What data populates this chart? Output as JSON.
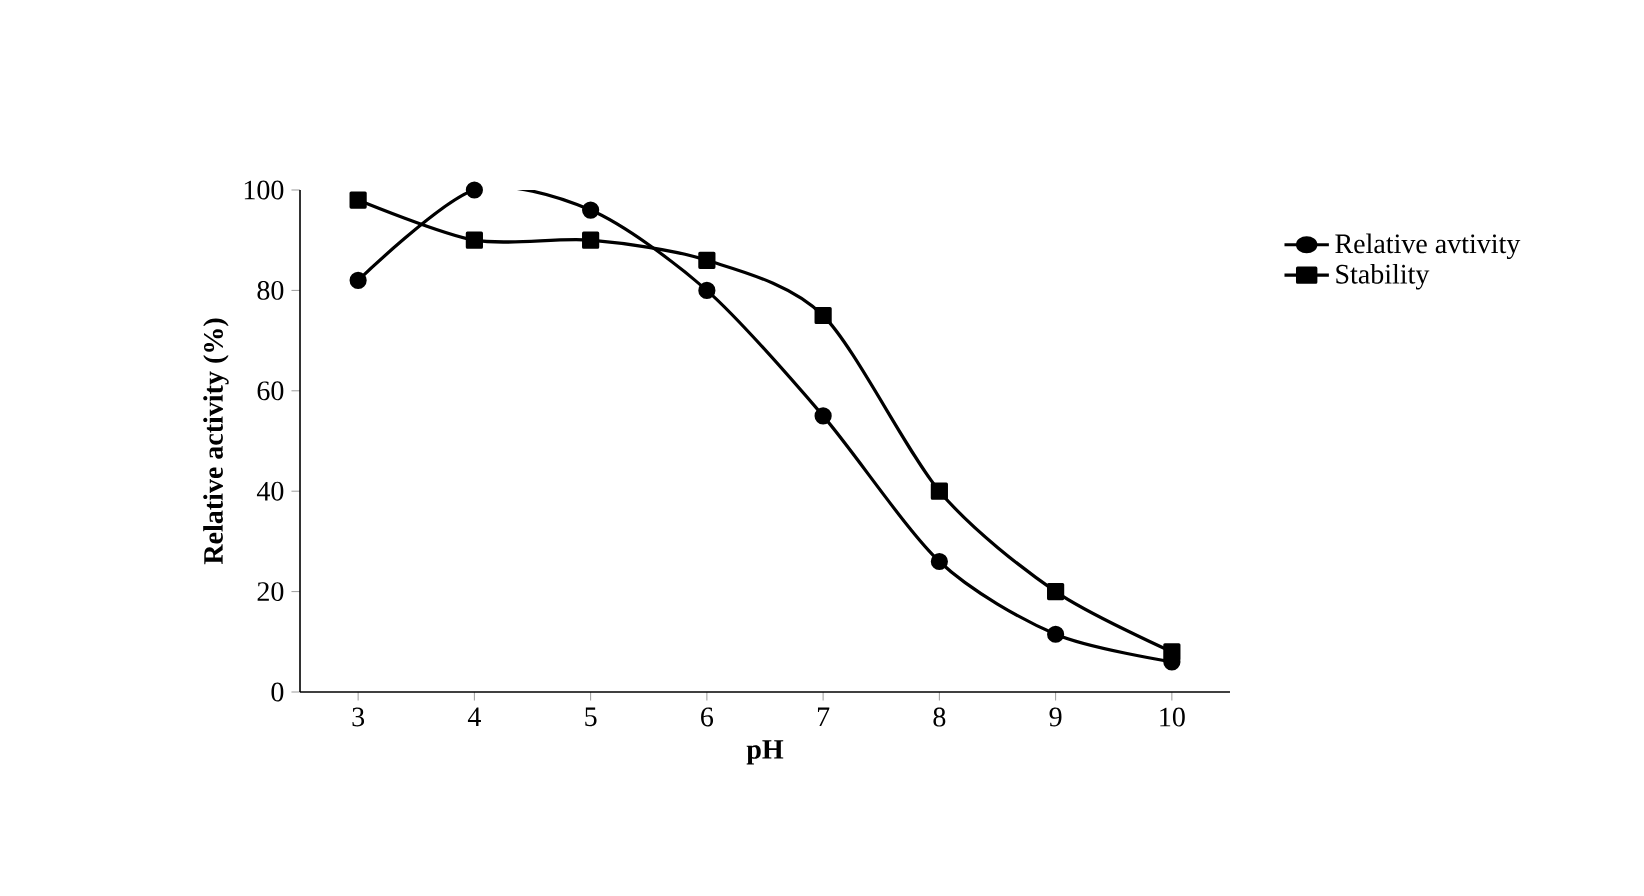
{
  "chart_data": {
    "type": "line",
    "xlabel": "pH",
    "ylabel": "Relative activity (%)",
    "categories": [
      "3",
      "4",
      "5",
      "6",
      "7",
      "8",
      "9",
      "10"
    ],
    "ylim": [
      0,
      100
    ],
    "yticks": [
      0,
      20,
      40,
      60,
      80,
      100
    ],
    "legend": "right",
    "grid": false,
    "series": [
      {
        "name": "Relative avtivity",
        "color": "#000000",
        "marker": "circle",
        "values": [
          82,
          100,
          96,
          80,
          55,
          26,
          11.5,
          6
        ]
      },
      {
        "name": "Stability",
        "color": "#000000",
        "marker": "square",
        "values": [
          98,
          90,
          90,
          86,
          75,
          40,
          20,
          8
        ]
      }
    ]
  }
}
